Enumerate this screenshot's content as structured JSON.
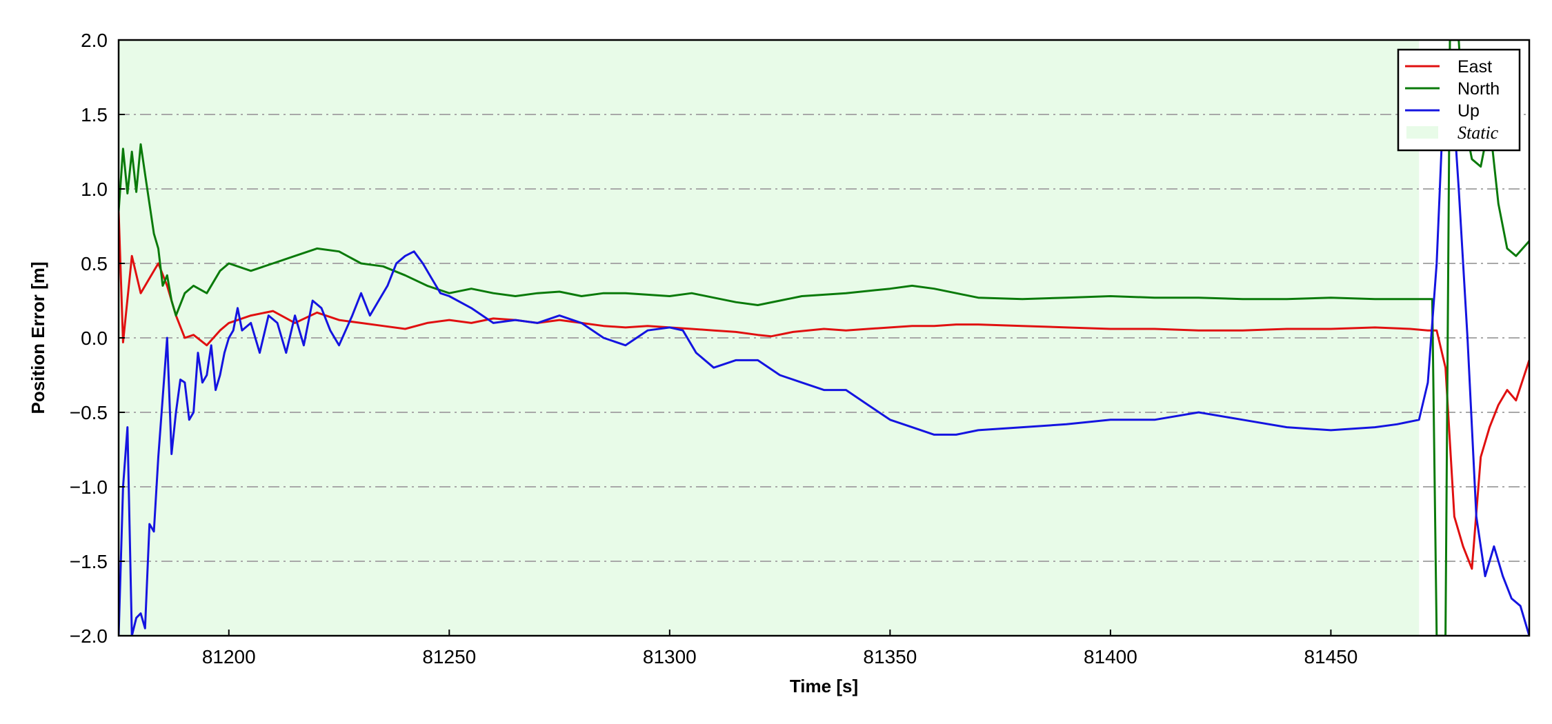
{
  "chart_data": {
    "type": "line",
    "xlabel": "Time [s]",
    "ylabel": "Position Error [m]",
    "xlim": [
      81175,
      81495
    ],
    "ylim": [
      -2.0,
      2.0
    ],
    "xticks": [
      81200,
      81250,
      81300,
      81350,
      81400,
      81450
    ],
    "yticks": [
      -2.0,
      -1.5,
      -1.0,
      -0.5,
      0.0,
      0.5,
      1.0,
      1.5,
      2.0
    ],
    "ytick_labels": [
      "−2.0",
      "−1.5",
      "−1.0",
      "−0.5",
      "0.0",
      "0.5",
      "1.0",
      "1.5",
      "2.0"
    ],
    "grid": "horizontal dash-dot",
    "legend_position": "top-right",
    "shaded_region": {
      "name": "Static",
      "x": [
        81175,
        81470
      ],
      "color": "#e8fbe8"
    },
    "series": [
      {
        "name": "East",
        "color": "#e01010",
        "x": [
          81175,
          81176,
          81178,
          81180,
          81182,
          81184,
          81186,
          81188,
          81190,
          81192,
          81195,
          81198,
          81200,
          81205,
          81210,
          81215,
          81220,
          81225,
          81230,
          81235,
          81240,
          81245,
          81250,
          81255,
          81260,
          81265,
          81270,
          81275,
          81280,
          81285,
          81290,
          81295,
          81300,
          81305,
          81310,
          81315,
          81320,
          81323,
          81328,
          81335,
          81340,
          81345,
          81350,
          81355,
          81360,
          81365,
          81370,
          81380,
          81390,
          81400,
          81410,
          81420,
          81430,
          81440,
          81450,
          81460,
          81468,
          81472,
          81474,
          81476,
          81478,
          81480,
          81482,
          81484,
          81486,
          81488,
          81490,
          81492,
          81495
        ],
        "y": [
          0.85,
          -0.03,
          0.55,
          0.3,
          0.4,
          0.5,
          0.35,
          0.15,
          0.0,
          0.02,
          -0.05,
          0.05,
          0.1,
          0.15,
          0.18,
          0.1,
          0.17,
          0.12,
          0.1,
          0.08,
          0.06,
          0.1,
          0.12,
          0.1,
          0.13,
          0.12,
          0.1,
          0.12,
          0.1,
          0.08,
          0.07,
          0.08,
          0.07,
          0.06,
          0.05,
          0.04,
          0.02,
          0.01,
          0.04,
          0.06,
          0.05,
          0.06,
          0.07,
          0.08,
          0.08,
          0.09,
          0.09,
          0.08,
          0.07,
          0.06,
          0.06,
          0.05,
          0.05,
          0.06,
          0.06,
          0.07,
          0.06,
          0.05,
          0.05,
          -0.2,
          -1.2,
          -1.4,
          -1.55,
          -0.8,
          -0.6,
          -0.45,
          -0.35,
          -0.42,
          -0.15
        ]
      },
      {
        "name": "North",
        "color": "#0a7a0a",
        "x": [
          81175,
          81176,
          81177,
          81178,
          81179,
          81180,
          81181,
          81182,
          81183,
          81184,
          81185,
          81186,
          81187,
          81188,
          81190,
          81192,
          81195,
          81198,
          81200,
          81205,
          81210,
          81215,
          81220,
          81225,
          81230,
          81235,
          81240,
          81245,
          81250,
          81255,
          81260,
          81265,
          81270,
          81275,
          81280,
          81285,
          81290,
          81295,
          81300,
          81305,
          81310,
          81315,
          81320,
          81325,
          81330,
          81340,
          81350,
          81355,
          81360,
          81365,
          81370,
          81380,
          81390,
          81400,
          81410,
          81420,
          81430,
          81440,
          81450,
          81460,
          81470,
          81473,
          81474,
          81476,
          81477,
          81479,
          81480,
          81482,
          81484,
          81486,
          81488,
          81490,
          81492,
          81495
        ],
        "y": [
          0.85,
          1.27,
          0.97,
          1.25,
          0.98,
          1.3,
          1.1,
          0.9,
          0.7,
          0.6,
          0.35,
          0.42,
          0.25,
          0.15,
          0.3,
          0.35,
          0.3,
          0.45,
          0.5,
          0.45,
          0.5,
          0.55,
          0.6,
          0.58,
          0.5,
          0.48,
          0.42,
          0.35,
          0.3,
          0.33,
          0.3,
          0.28,
          0.3,
          0.31,
          0.28,
          0.3,
          0.3,
          0.29,
          0.28,
          0.3,
          0.27,
          0.24,
          0.22,
          0.25,
          0.28,
          0.3,
          0.33,
          0.35,
          0.33,
          0.3,
          0.27,
          0.26,
          0.27,
          0.28,
          0.27,
          0.27,
          0.26,
          0.26,
          0.27,
          0.26,
          0.26,
          0.26,
          -2.0,
          -2.0,
          2.0,
          2.0,
          1.5,
          1.2,
          1.15,
          1.45,
          0.9,
          0.6,
          0.55,
          0.65
        ]
      },
      {
        "name": "Up",
        "color": "#1414e0",
        "x": [
          81175,
          81176,
          81177,
          81178,
          81179,
          81180,
          81181,
          81182,
          81183,
          81184,
          81185,
          81186,
          81187,
          81188,
          81189,
          81190,
          81191,
          81192,
          81193,
          81194,
          81195,
          81196,
          81197,
          81198,
          81199,
          81200,
          81201,
          81202,
          81203,
          81205,
          81207,
          81209,
          81211,
          81213,
          81215,
          81217,
          81219,
          81221,
          81223,
          81225,
          81228,
          81230,
          81232,
          81234,
          81236,
          81238,
          81240,
          81242,
          81244,
          81246,
          81248,
          81250,
          81255,
          81260,
          81265,
          81270,
          81275,
          81280,
          81285,
          81290,
          81295,
          81300,
          81303,
          81306,
          81310,
          81315,
          81320,
          81325,
          81330,
          81335,
          81340,
          81345,
          81350,
          81355,
          81360,
          81365,
          81370,
          81380,
          81390,
          81400,
          81410,
          81420,
          81430,
          81440,
          81450,
          81460,
          81465,
          81470,
          81472,
          81474,
          81476,
          81477,
          81479,
          81481,
          81483,
          81485,
          81487,
          81489,
          81491,
          81493,
          81495
        ],
        "y": [
          -2.0,
          -1.0,
          -0.6,
          -2.0,
          -1.88,
          -1.85,
          -1.95,
          -1.25,
          -1.3,
          -0.8,
          -0.4,
          0.0,
          -0.78,
          -0.5,
          -0.28,
          -0.3,
          -0.55,
          -0.5,
          -0.1,
          -0.3,
          -0.25,
          -0.05,
          -0.35,
          -0.25,
          -0.1,
          0.0,
          0.05,
          0.2,
          0.05,
          0.1,
          -0.1,
          0.15,
          0.1,
          -0.1,
          0.15,
          -0.05,
          0.25,
          0.2,
          0.05,
          -0.05,
          0.15,
          0.3,
          0.15,
          0.25,
          0.35,
          0.5,
          0.55,
          0.58,
          0.5,
          0.4,
          0.3,
          0.28,
          0.2,
          0.1,
          0.12,
          0.1,
          0.15,
          0.1,
          0.0,
          -0.05,
          0.05,
          0.07,
          0.05,
          -0.1,
          -0.2,
          -0.15,
          -0.15,
          -0.25,
          -0.3,
          -0.35,
          -0.35,
          -0.45,
          -0.55,
          -0.6,
          -0.65,
          -0.65,
          -0.62,
          -0.6,
          -0.58,
          -0.55,
          -0.55,
          -0.5,
          -0.55,
          -0.6,
          -0.62,
          -0.6,
          -0.58,
          -0.55,
          -0.3,
          0.5,
          1.9,
          1.9,
          1.0,
          0.0,
          -1.2,
          -1.6,
          -1.4,
          -1.6,
          -1.75,
          -1.8,
          -2.0
        ]
      }
    ]
  }
}
